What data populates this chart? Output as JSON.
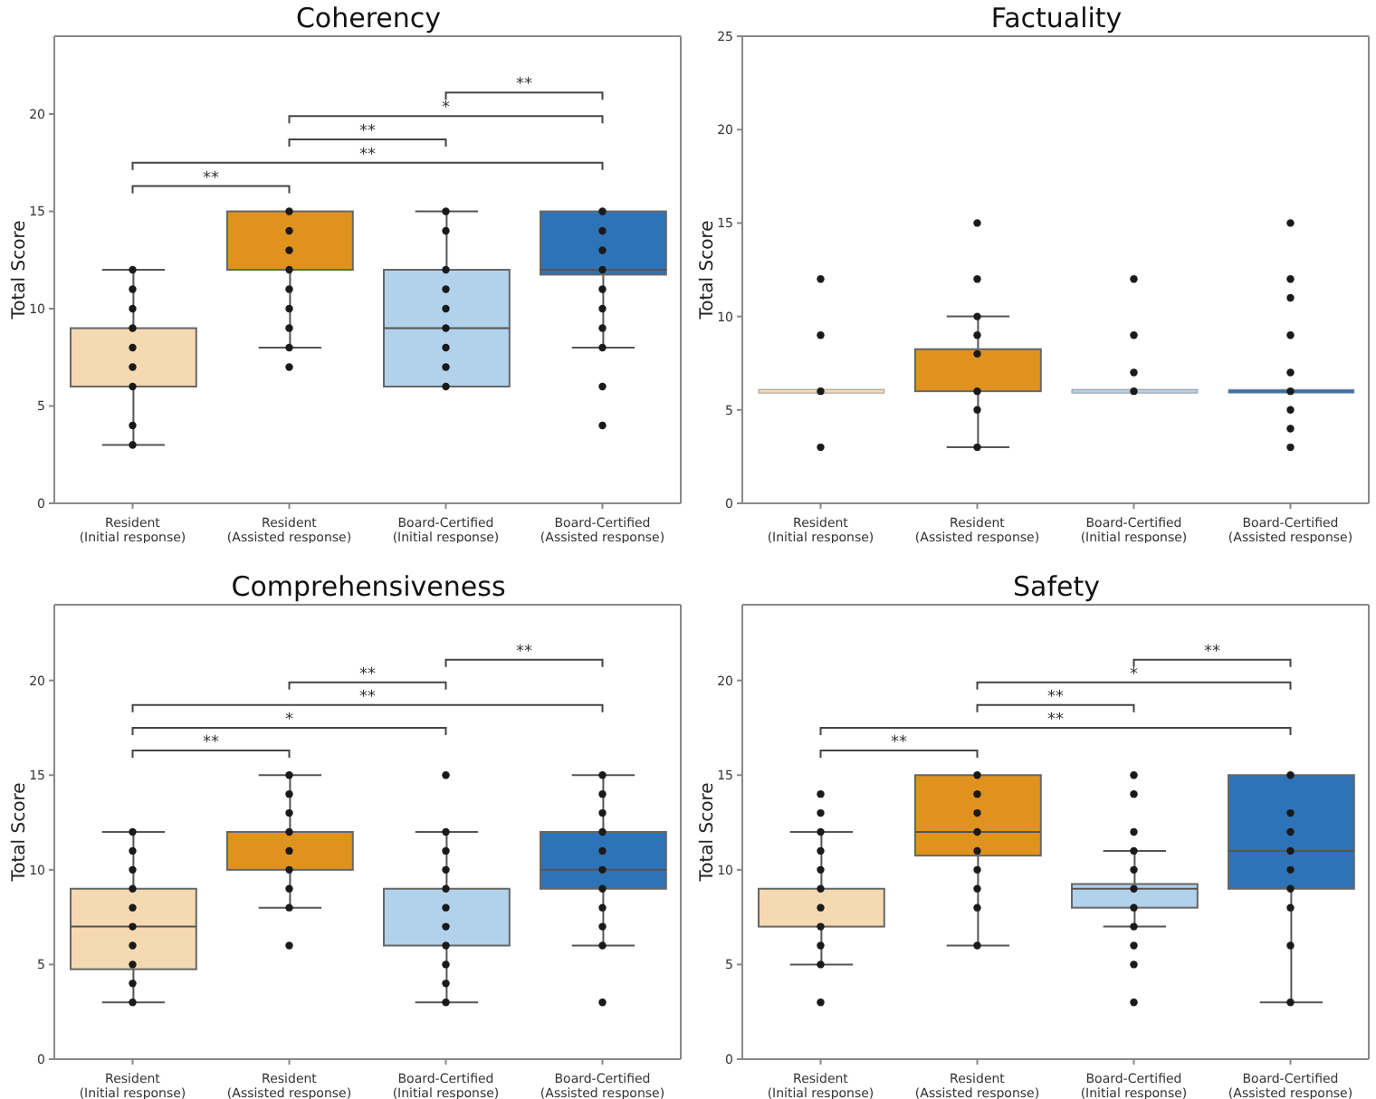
{
  "chart_data": [
    {
      "type": "box",
      "title": "Coherency",
      "ylabel": "Total Score",
      "categories": [
        "Resident\n(Initial response)",
        "Resident\n(Assisted response)",
        "Board-Certified\n(Initial response)",
        "Board-Certified\n(Assisted response)"
      ],
      "colors": [
        "#f5d9b0",
        "#e0921f",
        "#b2d1eb",
        "#2e73b8"
      ],
      "ylim": [
        0,
        24
      ],
      "yticks": [
        0,
        5,
        10,
        15,
        20
      ],
      "marker": "circle",
      "boxes": [
        {
          "low": 3,
          "q1": 6,
          "median": 6,
          "q3": 9,
          "high": 12
        },
        {
          "low": 8,
          "q1": 12,
          "median": 12,
          "q3": 15,
          "high": 15
        },
        {
          "low": 6,
          "q1": 6,
          "median": 9,
          "q3": 12,
          "high": 15
        },
        {
          "low": 8,
          "q1": 11.75,
          "median": 12,
          "q3": 15,
          "high": 15
        }
      ],
      "series": [
        {
          "type": "scatter",
          "color": "#1a1a1a",
          "x": [
            "Resident\n(Initial response)",
            "Resident\n(Initial response)",
            "Resident\n(Initial response)",
            "Resident\n(Initial response)",
            "Resident\n(Initial response)",
            "Resident\n(Initial response)",
            "Resident\n(Initial response)",
            "Resident\n(Initial response)",
            "Resident\n(Initial response)",
            "Resident\n(Assisted response)",
            "Resident\n(Assisted response)",
            "Resident\n(Assisted response)",
            "Resident\n(Assisted response)",
            "Resident\n(Assisted response)",
            "Resident\n(Assisted response)",
            "Resident\n(Assisted response)",
            "Resident\n(Assisted response)",
            "Resident\n(Assisted response)",
            "Board-Certified\n(Initial response)",
            "Board-Certified\n(Initial response)",
            "Board-Certified\n(Initial response)",
            "Board-Certified\n(Initial response)",
            "Board-Certified\n(Initial response)",
            "Board-Certified\n(Initial response)",
            "Board-Certified\n(Initial response)",
            "Board-Certified\n(Initial response)",
            "Board-Certified\n(Initial response)",
            "Board-Certified\n(Assisted response)",
            "Board-Certified\n(Assisted response)",
            "Board-Certified\n(Assisted response)",
            "Board-Certified\n(Assisted response)",
            "Board-Certified\n(Assisted response)",
            "Board-Certified\n(Assisted response)",
            "Board-Certified\n(Assisted response)",
            "Board-Certified\n(Assisted response)",
            "Board-Certified\n(Assisted response)",
            "Board-Certified\n(Assisted response)"
          ],
          "values": [
            12,
            11,
            10,
            9,
            8,
            7,
            6,
            4,
            3,
            15,
            14,
            13,
            12,
            11,
            10,
            9,
            8,
            7,
            15,
            14,
            12,
            11,
            10,
            9,
            8,
            7,
            6,
            15,
            14,
            13,
            12,
            11,
            10,
            9,
            8,
            6,
            4
          ]
        }
      ],
      "annotations": [
        "**",
        "**",
        "**",
        "*",
        "**"
      ]
    },
    {
      "type": "box",
      "title": "Factuality",
      "ylabel": "Total Score",
      "categories": [
        "Resident\n(Initial response)",
        "Resident\n(Assisted response)",
        "Board-Certified\n(Initial response)",
        "Board-Certified\n(Assisted response)"
      ],
      "colors": [
        "#f5d9b0",
        "#e0921f",
        "#b2d1eb",
        "#2e73b8"
      ],
      "ylim": [
        0,
        25
      ],
      "yticks": [
        0,
        5,
        10,
        15,
        20,
        25
      ],
      "marker": "circle",
      "boxes": [
        {
          "low": 6,
          "q1": 6,
          "median": 6,
          "q3": 6,
          "high": 6
        },
        {
          "low": 3,
          "q1": 6,
          "median": 6,
          "q3": 8.25,
          "high": 10
        },
        {
          "low": 6,
          "q1": 6,
          "median": 6,
          "q3": 6,
          "high": 6
        },
        {
          "low": 6,
          "q1": 6,
          "median": 6,
          "q3": 6,
          "high": 6
        }
      ],
      "series": [
        {
          "type": "scatter",
          "color": "#1a1a1a",
          "x": [
            "Resident\n(Initial response)",
            "Resident\n(Initial response)",
            "Resident\n(Initial response)",
            "Resident\n(Initial response)",
            "Resident\n(Assisted response)",
            "Resident\n(Assisted response)",
            "Resident\n(Assisted response)",
            "Resident\n(Assisted response)",
            "Resident\n(Assisted response)",
            "Resident\n(Assisted response)",
            "Resident\n(Assisted response)",
            "Resident\n(Assisted response)",
            "Board-Certified\n(Initial response)",
            "Board-Certified\n(Initial response)",
            "Board-Certified\n(Initial response)",
            "Board-Certified\n(Initial response)",
            "Board-Certified\n(Assisted response)",
            "Board-Certified\n(Assisted response)",
            "Board-Certified\n(Assisted response)",
            "Board-Certified\n(Assisted response)",
            "Board-Certified\n(Assisted response)",
            "Board-Certified\n(Assisted response)",
            "Board-Certified\n(Assisted response)",
            "Board-Certified\n(Assisted response)",
            "Board-Certified\n(Assisted response)"
          ],
          "values": [
            12,
            9,
            6,
            3,
            15,
            12,
            10,
            9,
            8,
            6,
            5,
            3,
            12,
            9,
            7,
            6,
            15,
            12,
            11,
            9,
            7,
            6,
            5,
            4,
            3
          ]
        }
      ]
    },
    {
      "type": "box",
      "title": "Comprehensiveness",
      "ylabel": "Total Score",
      "categories": [
        "Resident\n(Initial response)",
        "Resident\n(Assisted response)",
        "Board-Certified\n(Initial response)",
        "Board-Certified\n(Assisted response)"
      ],
      "colors": [
        "#f5d9b0",
        "#e0921f",
        "#b2d1eb",
        "#2e73b8"
      ],
      "ylim": [
        0,
        24
      ],
      "yticks": [
        0,
        5,
        10,
        15,
        20
      ],
      "marker": "circle",
      "boxes": [
        {
          "low": 3,
          "q1": 4.75,
          "median": 7,
          "q3": 9,
          "high": 12
        },
        {
          "low": 8,
          "q1": 10,
          "median": 12,
          "q3": 12,
          "high": 15
        },
        {
          "low": 3,
          "q1": 6,
          "median": 9,
          "q3": 9,
          "high": 12
        },
        {
          "low": 6,
          "q1": 9,
          "median": 10,
          "q3": 12,
          "high": 15
        }
      ],
      "series": [
        {
          "type": "scatter",
          "color": "#1a1a1a",
          "x": [
            "Resident\n(Initial response)",
            "Resident\n(Initial response)",
            "Resident\n(Initial response)",
            "Resident\n(Initial response)",
            "Resident\n(Initial response)",
            "Resident\n(Initial response)",
            "Resident\n(Initial response)",
            "Resident\n(Initial response)",
            "Resident\n(Initial response)",
            "Resident\n(Initial response)",
            "Resident\n(Assisted response)",
            "Resident\n(Assisted response)",
            "Resident\n(Assisted response)",
            "Resident\n(Assisted response)",
            "Resident\n(Assisted response)",
            "Resident\n(Assisted response)",
            "Resident\n(Assisted response)",
            "Resident\n(Assisted response)",
            "Resident\n(Assisted response)",
            "Board-Certified\n(Initial response)",
            "Board-Certified\n(Initial response)",
            "Board-Certified\n(Initial response)",
            "Board-Certified\n(Initial response)",
            "Board-Certified\n(Initial response)",
            "Board-Certified\n(Initial response)",
            "Board-Certified\n(Initial response)",
            "Board-Certified\n(Initial response)",
            "Board-Certified\n(Initial response)",
            "Board-Certified\n(Initial response)",
            "Board-Certified\n(Initial response)",
            "Board-Certified\n(Assisted response)",
            "Board-Certified\n(Assisted response)",
            "Board-Certified\n(Assisted response)",
            "Board-Certified\n(Assisted response)",
            "Board-Certified\n(Assisted response)",
            "Board-Certified\n(Assisted response)",
            "Board-Certified\n(Assisted response)",
            "Board-Certified\n(Assisted response)",
            "Board-Certified\n(Assisted response)",
            "Board-Certified\n(Assisted response)",
            "Board-Certified\n(Assisted response)"
          ],
          "values": [
            12,
            11,
            10,
            9,
            8,
            7,
            6,
            5,
            4,
            3,
            15,
            14,
            13,
            12,
            11,
            10,
            9,
            8,
            6,
            15,
            12,
            11,
            10,
            9,
            8,
            7,
            6,
            5,
            4,
            3,
            15,
            14,
            13,
            12,
            11,
            10,
            9,
            8,
            7,
            6,
            3
          ]
        }
      ],
      "annotations": [
        "**",
        "*",
        "**",
        "**",
        "**"
      ]
    },
    {
      "type": "box",
      "title": "Safety",
      "ylabel": "Total Score",
      "categories": [
        "Resident\n(Initial response)",
        "Resident\n(Assisted response)",
        "Board-Certified\n(Initial response)",
        "Board-Certified\n(Assisted response)"
      ],
      "colors": [
        "#f5d9b0",
        "#e0921f",
        "#b2d1eb",
        "#2e73b8"
      ],
      "ylim": [
        0,
        24
      ],
      "yticks": [
        0,
        5,
        10,
        15,
        20
      ],
      "marker": "circle",
      "boxes": [
        {
          "low": 5,
          "q1": 7,
          "median": 9,
          "q3": 9,
          "high": 12
        },
        {
          "low": 6,
          "q1": 10.75,
          "median": 12,
          "q3": 15,
          "high": 15
        },
        {
          "low": 7,
          "q1": 8,
          "median": 9,
          "q3": 9.25,
          "high": 11
        },
        {
          "low": 3,
          "q1": 9,
          "median": 11,
          "q3": 15,
          "high": 15
        }
      ],
      "series": [
        {
          "type": "scatter",
          "color": "#1a1a1a",
          "x": [
            "Resident\n(Initial response)",
            "Resident\n(Initial response)",
            "Resident\n(Initial response)",
            "Resident\n(Initial response)",
            "Resident\n(Initial response)",
            "Resident\n(Initial response)",
            "Resident\n(Initial response)",
            "Resident\n(Initial response)",
            "Resident\n(Initial response)",
            "Resident\n(Initial response)",
            "Resident\n(Initial response)",
            "Resident\n(Assisted response)",
            "Resident\n(Assisted response)",
            "Resident\n(Assisted response)",
            "Resident\n(Assisted response)",
            "Resident\n(Assisted response)",
            "Resident\n(Assisted response)",
            "Resident\n(Assisted response)",
            "Resident\n(Assisted response)",
            "Resident\n(Assisted response)",
            "Board-Certified\n(Initial response)",
            "Board-Certified\n(Initial response)",
            "Board-Certified\n(Initial response)",
            "Board-Certified\n(Initial response)",
            "Board-Certified\n(Initial response)",
            "Board-Certified\n(Initial response)",
            "Board-Certified\n(Initial response)",
            "Board-Certified\n(Initial response)",
            "Board-Certified\n(Initial response)",
            "Board-Certified\n(Initial response)",
            "Board-Certified\n(Initial response)",
            "Board-Certified\n(Assisted response)",
            "Board-Certified\n(Assisted response)",
            "Board-Certified\n(Assisted response)",
            "Board-Certified\n(Assisted response)",
            "Board-Certified\n(Assisted response)",
            "Board-Certified\n(Assisted response)",
            "Board-Certified\n(Assisted response)",
            "Board-Certified\n(Assisted response)",
            "Board-Certified\n(Assisted response)"
          ],
          "values": [
            14,
            13,
            12,
            11,
            10,
            9,
            8,
            7,
            6,
            5,
            3,
            15,
            14,
            13,
            12,
            11,
            10,
            9,
            8,
            6,
            15,
            14,
            12,
            11,
            10,
            9,
            8,
            7,
            6,
            5,
            3,
            15,
            13,
            12,
            11,
            10,
            9,
            8,
            6,
            3
          ]
        }
      ],
      "annotations": [
        "**",
        "**",
        "**",
        "*",
        "**"
      ]
    }
  ]
}
